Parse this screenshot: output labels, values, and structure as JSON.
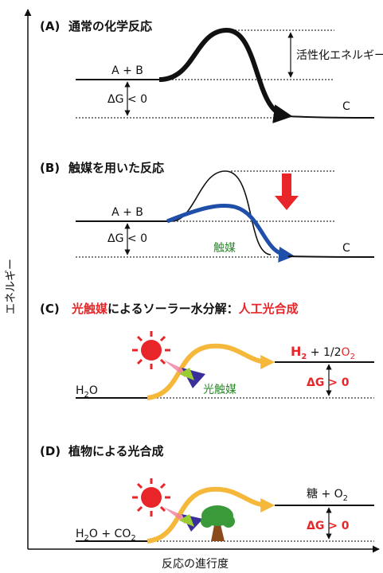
{
  "axis": {
    "y_label": "エネルギー",
    "x_label": "反応の進行度"
  },
  "panel_a": {
    "label": "(A)",
    "title": "通常の化学反応",
    "reactant": "A + B",
    "delta_g": "ΔG < 0",
    "product": "C",
    "activation": "活性化エネルギー"
  },
  "panel_b": {
    "label": "(B)",
    "title": "触媒を用いた反応",
    "reactant": "A + B",
    "delta_g": "ΔG < 0",
    "product": "C",
    "catalyst": "触媒"
  },
  "panel_c": {
    "label": "(C)",
    "title": [
      "光触媒",
      "によるソーラー水分解：",
      "人工光合成"
    ],
    "reactant": [
      "H",
      "2",
      "O"
    ],
    "product": [
      "H",
      "2",
      " + 1/2",
      "O",
      "2"
    ],
    "delta_g": "ΔG > 0",
    "catalyst": "光触媒"
  },
  "panel_d": {
    "label": "(D)",
    "title": "植物による光合成",
    "reactant": [
      "H",
      "2",
      "O + CO",
      "2"
    ],
    "product": [
      "糖 + O",
      "2"
    ],
    "delta_g": "ΔG > 0"
  }
}
